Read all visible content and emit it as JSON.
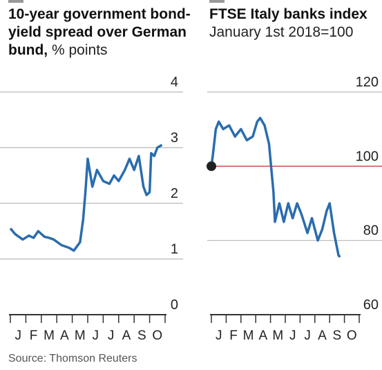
{
  "chart_data": [
    {
      "type": "line",
      "title": "10-year government bond-yield spread over German bund,",
      "subtitle": "% points",
      "categories": [
        "J",
        "F",
        "M",
        "A",
        "M",
        "J",
        "J",
        "A",
        "S",
        "O"
      ],
      "xlim": [
        0,
        10
      ],
      "xticks": [
        0,
        1,
        2,
        3,
        4,
        5,
        6,
        7,
        8,
        9,
        10
      ],
      "ylim": [
        0,
        4
      ],
      "yticks": [
        0,
        1,
        2,
        3,
        4
      ],
      "grid": true,
      "series": [
        {
          "color": "#2a6cae",
          "x": [
            0,
            0.3,
            0.8,
            1.2,
            1.5,
            1.8,
            2.2,
            2.5,
            2.8,
            3.3,
            3.8,
            4.1,
            4.5,
            4.7,
            4.85,
            5.0,
            5.3,
            5.6,
            6.0,
            6.4,
            6.7,
            7.0,
            7.4,
            7.7,
            8.0,
            8.3,
            8.6,
            8.8,
            9.0,
            9.1,
            9.3,
            9.5,
            9.8
          ],
          "values": [
            1.55,
            1.45,
            1.35,
            1.42,
            1.38,
            1.5,
            1.4,
            1.38,
            1.35,
            1.25,
            1.2,
            1.15,
            1.3,
            1.7,
            2.2,
            2.8,
            2.3,
            2.6,
            2.4,
            2.35,
            2.5,
            2.4,
            2.6,
            2.8,
            2.6,
            2.85,
            2.3,
            2.15,
            2.2,
            2.9,
            2.85,
            3.0,
            3.05
          ]
        }
      ]
    },
    {
      "type": "line",
      "title": "FTSE Italy banks index",
      "subtitle": "January 1st 2018=100",
      "categories": [
        "J",
        "F",
        "M",
        "A",
        "M",
        "J",
        "J",
        "A",
        "S",
        "O"
      ],
      "xlim": [
        0,
        10
      ],
      "xticks": [
        0,
        1,
        2,
        3,
        4,
        5,
        6,
        7,
        8,
        9,
        10
      ],
      "ylim": [
        60,
        120
      ],
      "yticks": [
        60,
        80,
        100,
        120
      ],
      "grid": true,
      "hline": 100,
      "hline_color": "#c9504a",
      "series": [
        {
          "color": "#2a6cae",
          "x": [
            0,
            0.1,
            0.3,
            0.5,
            0.8,
            1.2,
            1.6,
            2.0,
            2.4,
            2.8,
            3.1,
            3.3,
            3.6,
            3.9,
            4.2,
            4.3,
            4.6,
            4.9,
            5.2,
            5.5,
            5.8,
            6.1,
            6.5,
            6.8,
            7.2,
            7.5,
            7.8,
            8.0,
            8.3,
            8.5,
            8.6,
            8.7
          ],
          "values": [
            100,
            103,
            110,
            112,
            110,
            111,
            108,
            110,
            107,
            108,
            112,
            113,
            111,
            106,
            93,
            85,
            90,
            85,
            90,
            86,
            90,
            87,
            82,
            86,
            80,
            83,
            88,
            90,
            82,
            78,
            76,
            75.5
          ]
        }
      ]
    }
  ],
  "source": "Source: Thomson Reuters"
}
